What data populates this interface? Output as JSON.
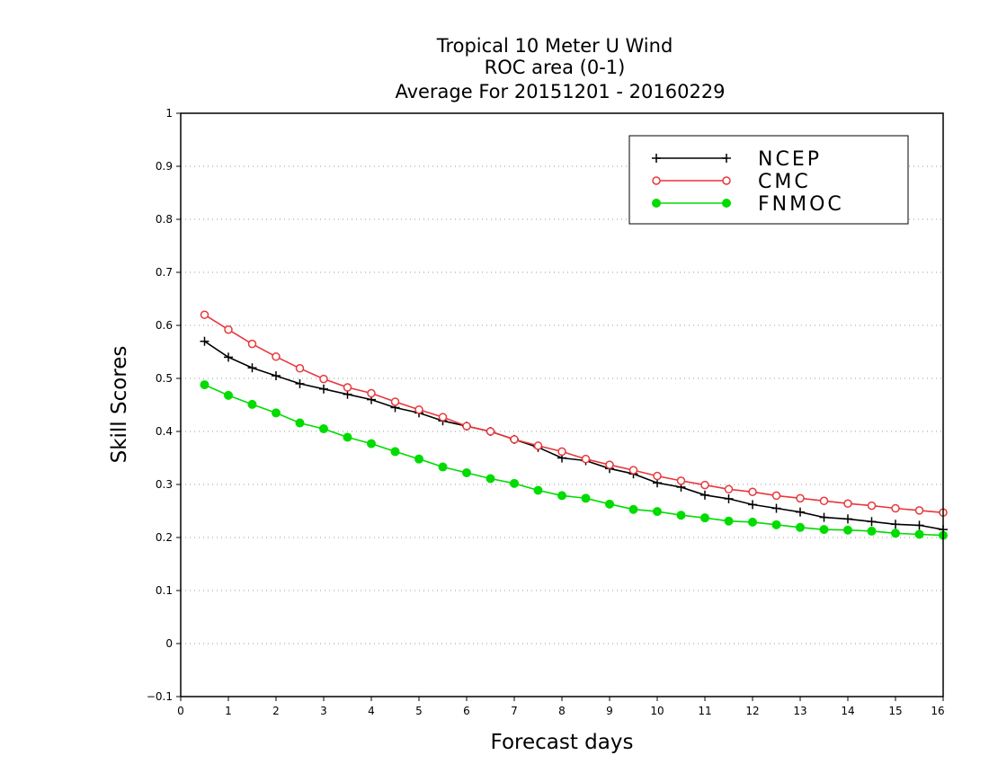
{
  "chart_data": {
    "type": "line",
    "title": [
      "Tropical 10 Meter U Wind",
      "ROC area (0-1)",
      "Average For 20151201 - 20160229"
    ],
    "xlabel": "Forecast days",
    "ylabel": "Skill Scores",
    "xlim": [
      0,
      16
    ],
    "ylim": [
      -0.1,
      1
    ],
    "xticks": [
      0,
      1,
      2,
      3,
      4,
      5,
      6,
      7,
      8,
      9,
      10,
      11,
      12,
      13,
      14,
      15,
      16
    ],
    "yticks": [
      -0.1,
      0,
      0.1,
      0.2,
      0.3,
      0.4,
      0.5,
      0.6,
      0.7,
      0.8,
      0.9,
      1
    ],
    "ytick_labels": [
      "−0.1",
      "0",
      "0.1",
      "0.2",
      "0.3",
      "0.4",
      "0.5",
      "0.6",
      "0.7",
      "0.8",
      "0.9",
      "1"
    ],
    "grid": "horizontal-dotted",
    "legend_position": "top-right",
    "x": [
      0.5,
      1,
      1.5,
      2,
      2.5,
      3,
      3.5,
      4,
      4.5,
      5,
      5.5,
      6,
      6.5,
      7,
      7.5,
      8,
      8.5,
      9,
      9.5,
      10,
      10.5,
      11,
      11.5,
      12,
      12.5,
      13,
      13.5,
      14,
      14.5,
      15,
      15.5,
      16
    ],
    "series": [
      {
        "name": "NCEP",
        "color": "#000000",
        "marker": "plus",
        "values": [
          0.57,
          0.54,
          0.52,
          0.505,
          0.49,
          0.48,
          0.47,
          0.46,
          0.445,
          0.435,
          0.42,
          0.41,
          0.4,
          0.385,
          0.37,
          0.35,
          0.345,
          0.33,
          0.32,
          0.303,
          0.295,
          0.28,
          0.273,
          0.262,
          0.255,
          0.248,
          0.238,
          0.235,
          0.23,
          0.225,
          0.223,
          0.215
        ]
      },
      {
        "name": "CMC",
        "color": "#e8373a",
        "marker": "open-circle",
        "values": [
          0.62,
          0.592,
          0.565,
          0.541,
          0.519,
          0.499,
          0.483,
          0.472,
          0.456,
          0.441,
          0.427,
          0.41,
          0.4,
          0.385,
          0.373,
          0.362,
          0.348,
          0.337,
          0.327,
          0.316,
          0.307,
          0.299,
          0.291,
          0.286,
          0.279,
          0.274,
          0.269,
          0.264,
          0.26,
          0.255,
          0.251,
          0.247
        ]
      },
      {
        "name": "FNMOC",
        "color": "#00dc00",
        "marker": "filled-circle",
        "values": [
          0.488,
          0.468,
          0.451,
          0.435,
          0.416,
          0.405,
          0.389,
          0.377,
          0.362,
          0.348,
          0.333,
          0.322,
          0.311,
          0.302,
          0.289,
          0.279,
          0.274,
          0.263,
          0.253,
          0.249,
          0.242,
          0.237,
          0.231,
          0.229,
          0.224,
          0.219,
          0.215,
          0.214,
          0.212,
          0.208,
          0.206,
          0.204
        ]
      }
    ]
  }
}
